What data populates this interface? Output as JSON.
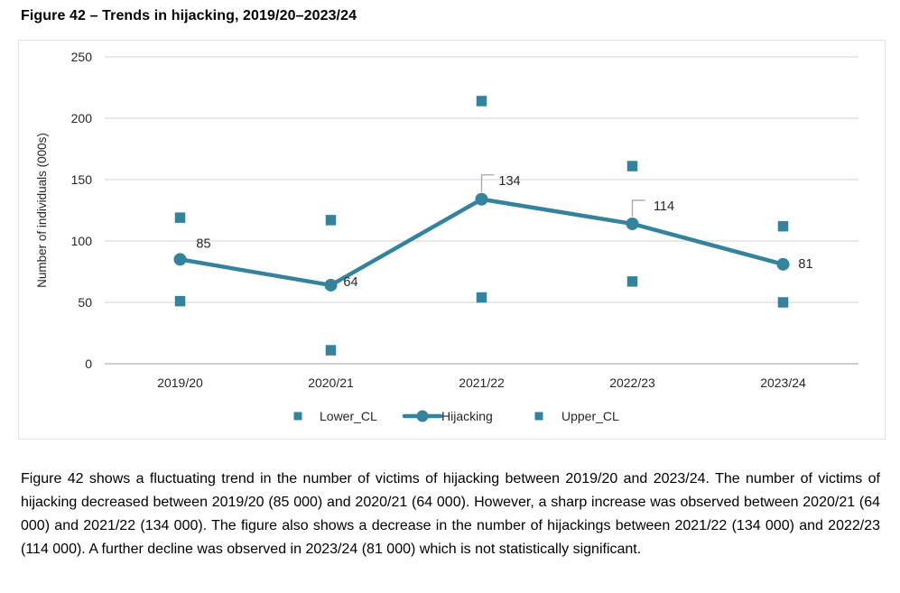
{
  "page": {
    "title": "Figure 42 – Trends in hijacking, 2019/20–2023/24",
    "caption": "Figure 42 shows a fluctuating trend in the number of victims of hijacking between 2019/20 and 2023/24. The number of victims of hijacking decreased between 2019/20 (85 000) and 2020/21 (64 000). However, a sharp increase was observed between 2020/21 (64 000) and 2021/22 (134 000). The figure also shows a decrease in the number of hijackings between 2021/22 (134 000) and 2022/23 (114 000). A further decline was observed in 2023/24 (81 000) which is not statistically significant."
  },
  "chart_data": {
    "type": "line",
    "title": "",
    "categories": [
      "2019/20",
      "2020/21",
      "2021/22",
      "2022/23",
      "2023/24"
    ],
    "series": [
      {
        "name": "Lower_CL",
        "marker": "square",
        "values": [
          51,
          11,
          54,
          67,
          50
        ]
      },
      {
        "name": "Hijacking",
        "marker": "circle-line",
        "values": [
          85,
          64,
          134,
          114,
          81
        ],
        "data_labels": [
          "85",
          "64",
          "134",
          "114",
          "81"
        ]
      },
      {
        "name": "Upper_CL",
        "marker": "square",
        "values": [
          119,
          117,
          214,
          161,
          112
        ]
      }
    ],
    "xlabel": "",
    "ylabel": "Number of individuals (000s)",
    "ylim": [
      0,
      250
    ],
    "yticks": [
      0,
      50,
      100,
      150,
      200,
      250
    ],
    "grid": true,
    "legend_position": "bottom",
    "colors": {
      "series": "#34829C",
      "gridline": "#D9D9D9",
      "axis_line": "#BFBFBF",
      "leader_line": "#A6A6A6",
      "text": "#262626",
      "label_text": "#1A1A1A"
    }
  }
}
